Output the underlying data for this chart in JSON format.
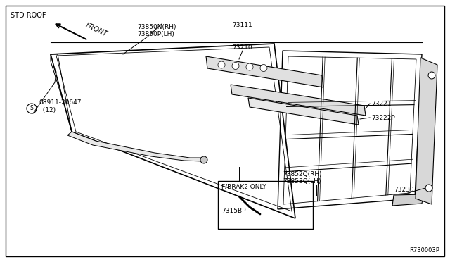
{
  "background_color": "#ffffff",
  "std_roof_label": "STD ROOF",
  "ref_label": "R730003P",
  "text_color": "#000000",
  "line_color": "#000000",
  "label_73850": "73850N(RH)\n73850P(LH)",
  "label_08911": "08911-20647\n  (12)",
  "label_F_RRAK2": "F/RRAK2 ONLY",
  "label_7315BP": "7315BP",
  "label_73852Q": "73852Q(RH)\n73853Q(LH)",
  "label_73230": "73230",
  "label_73222P": "73222P",
  "label_73221": "73221",
  "label_73210": "73210",
  "label_73111": "73111"
}
